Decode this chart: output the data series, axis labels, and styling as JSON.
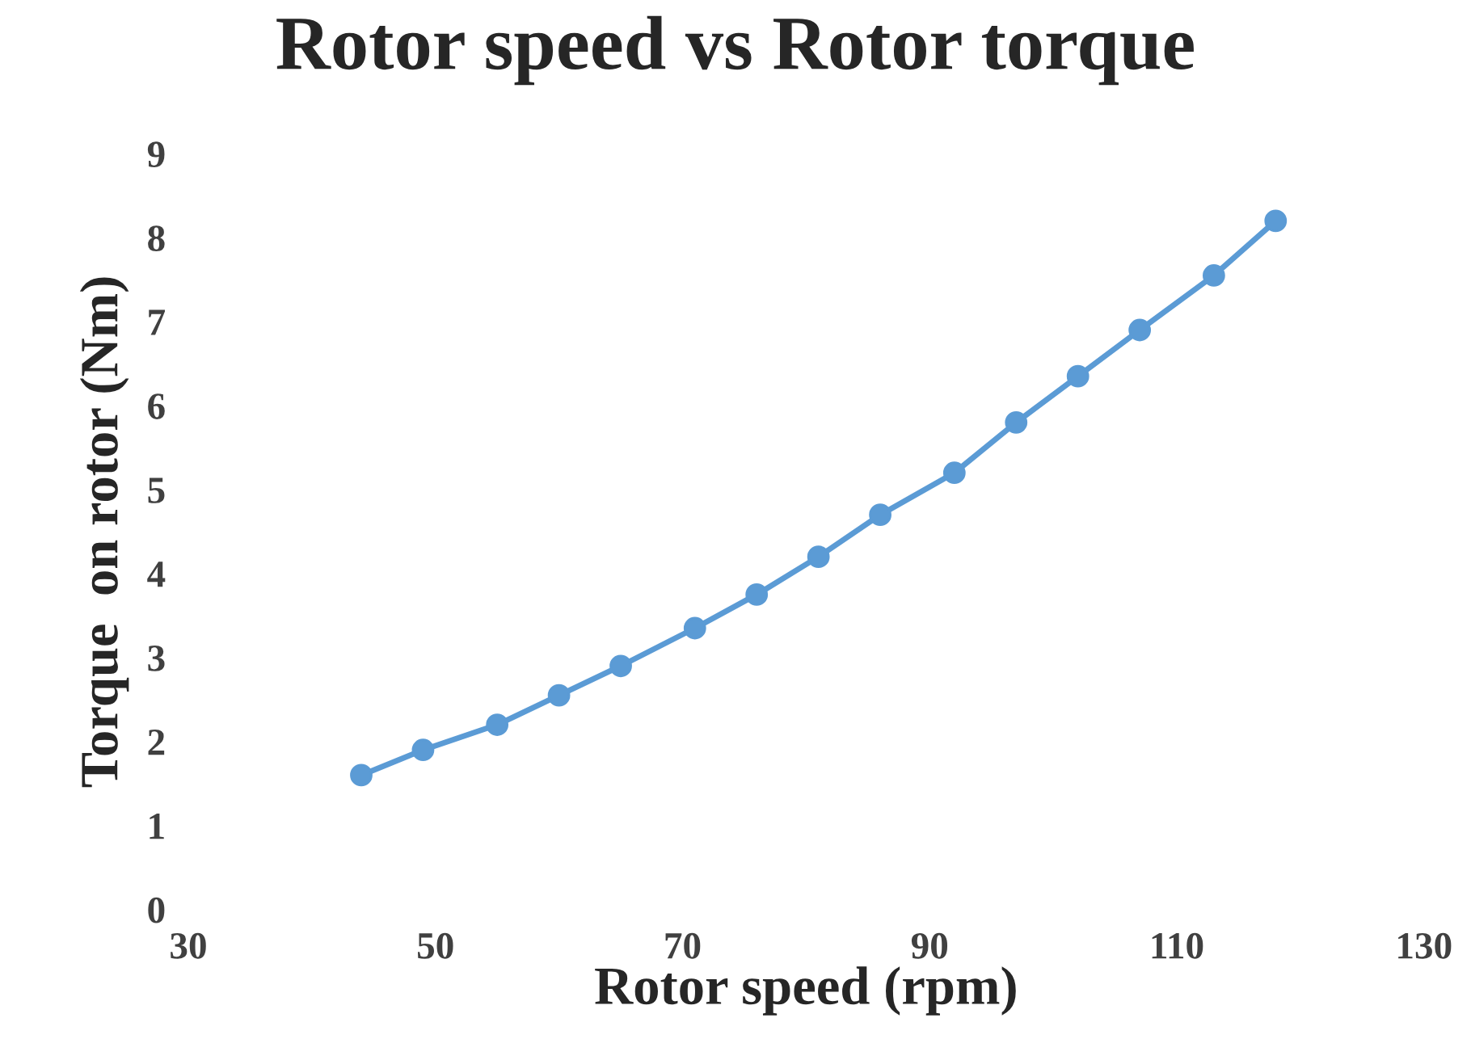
{
  "chart_data": {
    "type": "line",
    "title": "Rotor speed vs Rotor torque",
    "xlabel": "Rotor speed (rpm)",
    "ylabel": "Torque  on rotor (Nm)",
    "x": [
      44,
      49,
      55,
      60,
      65,
      71,
      76,
      81,
      86,
      92,
      97,
      102,
      107,
      113,
      118
    ],
    "series": [
      {
        "color": "#5b9bd5",
        "values": [
          1.6,
          1.9,
          2.2,
          2.55,
          2.9,
          3.35,
          3.75,
          4.2,
          4.7,
          5.2,
          5.8,
          6.35,
          6.9,
          7.55,
          8.2
        ]
      }
    ],
    "xlim": [
      30,
      130
    ],
    "xticks": [
      30,
      50,
      70,
      90,
      110,
      130
    ],
    "ylim": [
      0,
      9
    ],
    "yticks": [
      0,
      1,
      2,
      3,
      4,
      5,
      6,
      7,
      8,
      9
    ],
    "marker": "circle",
    "line_style": "solid",
    "grid": false,
    "legend": false
  }
}
